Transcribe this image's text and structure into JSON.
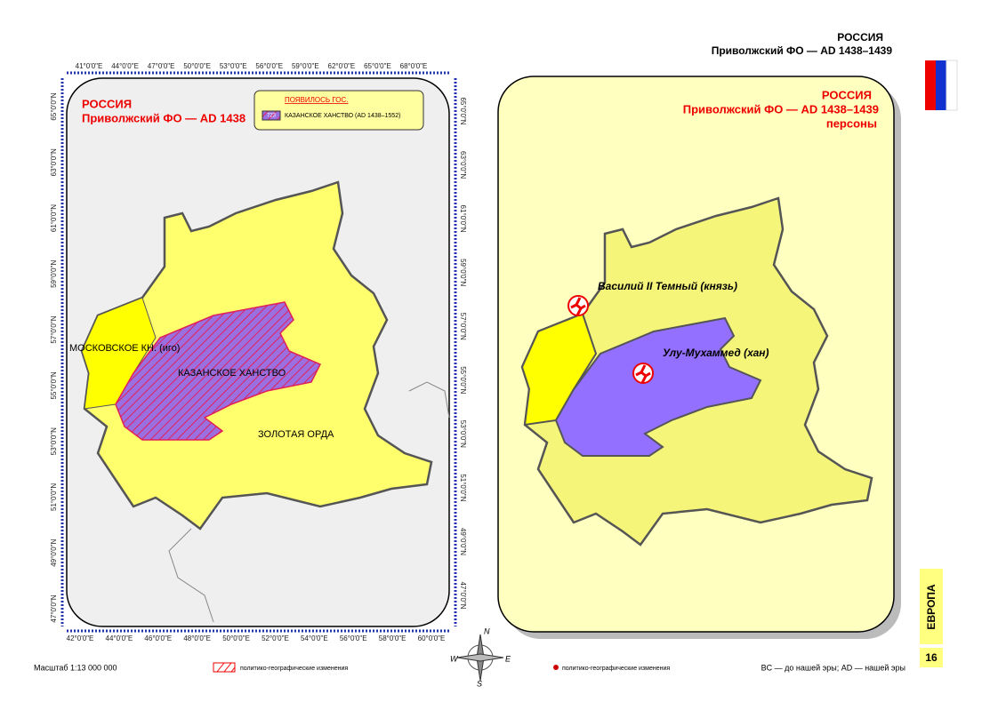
{
  "header": {
    "country": "РОССИЯ",
    "region": "Приволжский ФО — AD 1438–1439"
  },
  "left_map": {
    "title": "РОССИЯ",
    "subtitle": "Приволжский ФО — AD 1438",
    "legend": {
      "heading": "ПОЯВИЛОСЬ ГОС.",
      "swatch": "723",
      "item": "КАЗАНСКОЕ ХАНСТВО (AD 1438–1552)"
    },
    "labels": [
      "МОСКОВСКОЕ КН. (иго)",
      "КАЗАНСКОЕ ХАНСТВО",
      "ЗОЛОТАЯ ОРДА"
    ],
    "top_ticks": [
      "41°0'0\"E",
      "44°0'0\"E",
      "47°0'0\"E",
      "50°0'0\"E",
      "53°0'0\"E",
      "56°0'0\"E",
      "59°0'0\"E",
      "62°0'0\"E",
      "65°0'0\"E",
      "68°0'0\"E"
    ],
    "bottom_ticks": [
      "42°0'0\"E",
      "44°0'0\"E",
      "46°0'0\"E",
      "48°0'0\"E",
      "50°0'0\"E",
      "52°0'0\"E",
      "54°0'0\"E",
      "56°0'0\"E",
      "58°0'0\"E",
      "60°0'0\"E"
    ],
    "left_ticks": [
      "65°0'0\"N",
      "63°0'0\"N",
      "61°0'0\"N",
      "59°0'0\"N",
      "57°0'0\"N",
      "55°0'0\"N",
      "53°0'0\"N",
      "51°0'0\"N",
      "49°0'0\"N",
      "47°0'0\"N"
    ],
    "right_ticks": [
      "65°0'0\"N",
      "63°0'0\"N",
      "61°0'0\"N",
      "59°0'0\"N",
      "57°0'0\"N",
      "55°0'0\"N",
      "53°0'0\"N",
      "51°0'0\"N",
      "49°0'0\"N",
      "47°0'0\"N"
    ]
  },
  "right_map": {
    "title": "РОССИЯ",
    "subtitle": "Приволжский ФО — AD 1438–1439",
    "note": "персоны",
    "persons": [
      "Василий II Темный (князь)",
      "Улу-Мухаммед (хан)"
    ]
  },
  "compass": {
    "n": "N",
    "e": "E",
    "w": "W",
    "s": "S"
  },
  "side": {
    "tab": "ЕВРОПА",
    "page": "16"
  },
  "footer": {
    "scale": "Масштаб 1:13 000 000",
    "hatch_legend": "политико-географические изменения",
    "dot_legend": "политико-географические изменения",
    "era": "BC — до нашей эры; AD — нашей эры"
  }
}
